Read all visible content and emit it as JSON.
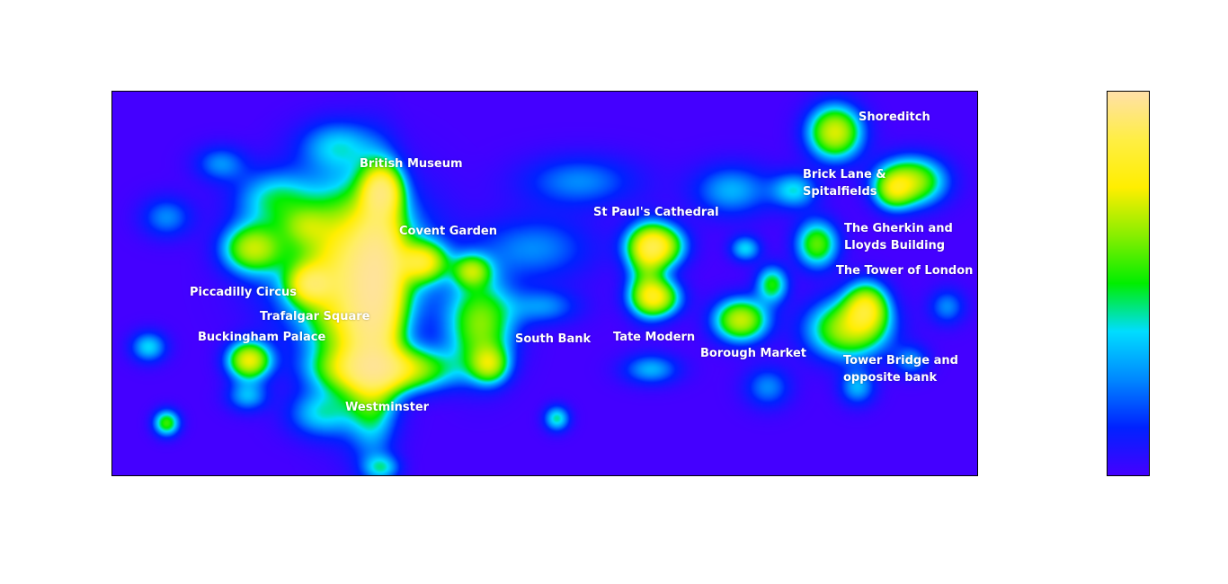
{
  "map": {
    "labels": [
      {
        "id": "shoreditch",
        "lines": [
          "Shoreditch"
        ]
      },
      {
        "id": "brick-lane",
        "lines": [
          "Brick Lane &",
          "Spitalfields"
        ]
      },
      {
        "id": "british-museum",
        "lines": [
          "British Museum"
        ]
      },
      {
        "id": "st-pauls",
        "lines": [
          "St Paul's Cathedral"
        ]
      },
      {
        "id": "covent-garden",
        "lines": [
          "Covent Garden"
        ]
      },
      {
        "id": "gherkin",
        "lines": [
          "The Gherkin and",
          "Lloyds Building"
        ]
      },
      {
        "id": "tower-of-london",
        "lines": [
          "The Tower of London"
        ]
      },
      {
        "id": "piccadilly",
        "lines": [
          "Piccadilly Circus"
        ]
      },
      {
        "id": "trafalgar",
        "lines": [
          "Trafalgar Square"
        ]
      },
      {
        "id": "buckingham",
        "lines": [
          "Buckingham Palace"
        ]
      },
      {
        "id": "south-bank",
        "lines": [
          "South Bank"
        ]
      },
      {
        "id": "tate-modern",
        "lines": [
          "Tate Modern"
        ]
      },
      {
        "id": "borough-market",
        "lines": [
          "Borough Market"
        ]
      },
      {
        "id": "tower-bridge",
        "lines": [
          "Tower Bridge and",
          "opposite bank"
        ]
      },
      {
        "id": "westminster",
        "lines": [
          "Westminster"
        ]
      }
    ]
  },
  "colorbar": {
    "colors": [
      "#4400ff",
      "#0022ff",
      "#0088ff",
      "#00ddff",
      "#00ee00",
      "#88ee00",
      "#ffee00",
      "#ffee44",
      "#ffe0a8"
    ]
  }
}
